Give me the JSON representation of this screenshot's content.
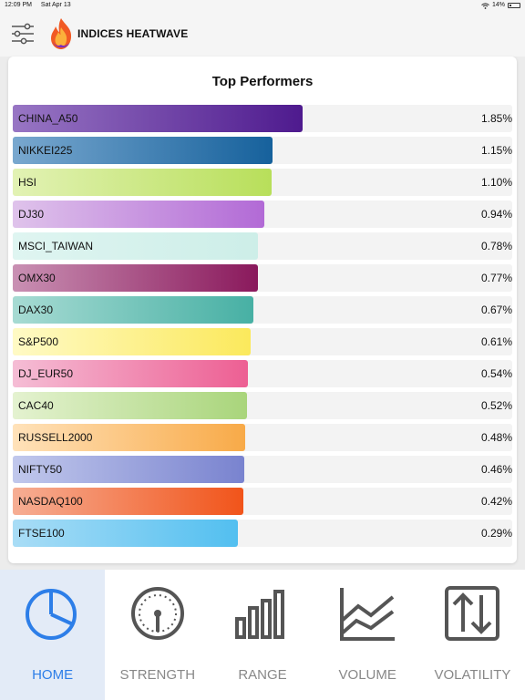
{
  "status_bar": {
    "time": "12:09 PM",
    "date": "Sat Apr 13",
    "battery": "14%"
  },
  "header": {
    "title": "INDICES HEATWAVE"
  },
  "card": {
    "title": "Top Performers"
  },
  "performers": [
    {
      "name": "CHINA_A50",
      "value": "1.85%",
      "fill": 0.581,
      "color_from": "#9876c4",
      "color_to": "#4e1a8e"
    },
    {
      "name": "NIKKEI225",
      "value": "1.15%",
      "fill": 0.52,
      "color_from": "#79a8cf",
      "color_to": "#16619c"
    },
    {
      "name": "HSI",
      "value": "1.10%",
      "fill": 0.518,
      "color_from": "#e2f2b4",
      "color_to": "#b8df5a"
    },
    {
      "name": "DJ30",
      "value": "0.94%",
      "fill": 0.504,
      "color_from": "#dfc3eb",
      "color_to": "#b26ad6"
    },
    {
      "name": "MSCI_TAIWAN",
      "value": "0.78%",
      "fill": 0.491,
      "color_from": "#dff5f1",
      "color_to": "#cdeee8"
    },
    {
      "name": "OMX30",
      "value": "0.77%",
      "fill": 0.49,
      "color_from": "#c990b3",
      "color_to": "#8a195c"
    },
    {
      "name": "DAX30",
      "value": "0.67%",
      "fill": 0.482,
      "color_from": "#a7dbd3",
      "color_to": "#47b0a4"
    },
    {
      "name": "S&P500",
      "value": "0.61%",
      "fill": 0.477,
      "color_from": "#fffac5",
      "color_to": "#fbe95c"
    },
    {
      "name": "DJ_EUR50",
      "value": "0.54%",
      "fill": 0.471,
      "color_from": "#f5bdd5",
      "color_to": "#ed5f93"
    },
    {
      "name": "CAC40",
      "value": "0.52%",
      "fill": 0.469,
      "color_from": "#e4f2d0",
      "color_to": "#a9d57b"
    },
    {
      "name": "RUSSELL2000",
      "value": "0.48%",
      "fill": 0.466,
      "color_from": "#ffe2ba",
      "color_to": "#f8aa48"
    },
    {
      "name": "NIFTY50",
      "value": "0.46%",
      "fill": 0.464,
      "color_from": "#c1c8ec",
      "color_to": "#7983cf"
    },
    {
      "name": "NASDAQ100",
      "value": "0.42%",
      "fill": 0.461,
      "color_from": "#f6ae94",
      "color_to": "#f1541a"
    },
    {
      "name": "FTSE100",
      "value": "0.29%",
      "fill": 0.45,
      "color_from": "#a9ddf6",
      "color_to": "#52bff0"
    }
  ],
  "tabs": [
    {
      "label": "HOME",
      "icon": "pie-chart-icon",
      "active": true
    },
    {
      "label": "STRENGTH",
      "icon": "gauge-icon",
      "active": false
    },
    {
      "label": "RANGE",
      "icon": "bar-chart-icon",
      "active": false
    },
    {
      "label": "VOLUME",
      "icon": "line-chart-icon",
      "active": false
    },
    {
      "label": "VOLATILITY",
      "icon": "up-down-arrows-icon",
      "active": false
    }
  ],
  "colors": {
    "active_tab": "#2d7ee8",
    "inactive_tab": "#888888"
  }
}
